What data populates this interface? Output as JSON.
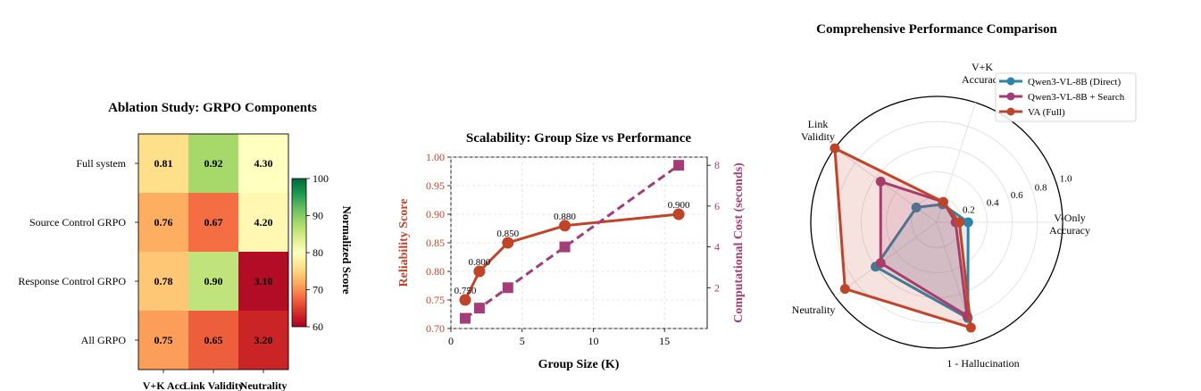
{
  "chart_data": [
    {
      "type": "heatmap",
      "title": "Ablation Study: GRPO Components",
      "rows": [
        "Full system",
        "Source Control GRPO",
        "Response Control GRPO",
        "All GRPO"
      ],
      "columns": [
        "V+K Acc",
        "Link Validity",
        "Neutrality"
      ],
      "values": [
        [
          0.81,
          0.92,
          4.3
        ],
        [
          0.76,
          0.67,
          4.2
        ],
        [
          0.78,
          0.9,
          3.1
        ],
        [
          0.75,
          0.65,
          3.2
        ]
      ],
      "cell_labels": [
        [
          "0.81",
          "0.92",
          "4.30"
        ],
        [
          "0.76",
          "0.67",
          "4.20"
        ],
        [
          "0.78",
          "0.90",
          "3.10"
        ],
        [
          "0.75",
          "0.65",
          "3.20"
        ]
      ],
      "normalized_scores": [
        [
          76,
          88,
          80
        ],
        [
          72,
          68,
          79
        ],
        [
          74,
          86,
          61
        ],
        [
          71,
          67,
          63
        ]
      ],
      "colorbar": {
        "label": "Normalized Score",
        "range": [
          60,
          100
        ],
        "ticks": [
          "60",
          "70",
          "80",
          "90",
          "100"
        ],
        "colormap": "RdYlGn"
      }
    },
    {
      "type": "line",
      "title": "Scalability: Group Size vs Performance",
      "xlabel": "Group Size (K)",
      "ylabel": "Reliability Score",
      "y2label": "Computational Cost (seconds)",
      "x": [
        1,
        2,
        4,
        8,
        16
      ],
      "xlim": [
        0,
        18
      ],
      "ylim": [
        0.7,
        1.0
      ],
      "y2lim": [
        0,
        8.4
      ],
      "xticks": [
        "0",
        "5",
        "10",
        "15"
      ],
      "yticks": [
        "0.70",
        "0.75",
        "0.80",
        "0.85",
        "0.90",
        "0.95",
        "1.00"
      ],
      "y2ticks": [
        "2",
        "4",
        "6",
        "8"
      ],
      "grid": true,
      "series": [
        {
          "values": [
            0.75,
            0.8,
            0.85,
            0.88,
            0.9
          ],
          "labels": [
            "0.750",
            "0.800",
            "0.850",
            "0.880",
            "0.900"
          ],
          "color": "#c0442a",
          "axis": "left",
          "style": "solid",
          "marker": "circle"
        },
        {
          "values": [
            0.5,
            1.0,
            2.0,
            4.0,
            8.0
          ],
          "color": "#a43d77",
          "axis": "right",
          "style": "dashed",
          "marker": "square"
        }
      ]
    },
    {
      "type": "radar",
      "title": "Comprehensive Performance Comparison",
      "axes": [
        "V-Only\nAccuracy",
        "V+K\nAccuracy",
        "Link\nValidity",
        "Neutrality",
        "1 - Hallucination"
      ],
      "rticks": [
        "0.2",
        "0.4",
        "0.6",
        "0.8",
        "1.0"
      ],
      "rlim": [
        0,
        1.0
      ],
      "legend_position": "top-right",
      "series": [
        {
          "name": "Qwen3-VL-8B (Direct)",
          "values": [
            0.25,
            0.15,
            0.2,
            0.6,
            0.8
          ],
          "color": "#2e83a8"
        },
        {
          "name": "Qwen3-VL-8B + Search",
          "values": [
            0.15,
            0.17,
            0.55,
            0.55,
            0.78
          ],
          "color": "#a43d77"
        },
        {
          "name": "VA (Full)",
          "values": [
            0.18,
            0.17,
            1.0,
            0.9,
            0.88
          ],
          "color": "#c0442a"
        }
      ]
    }
  ]
}
